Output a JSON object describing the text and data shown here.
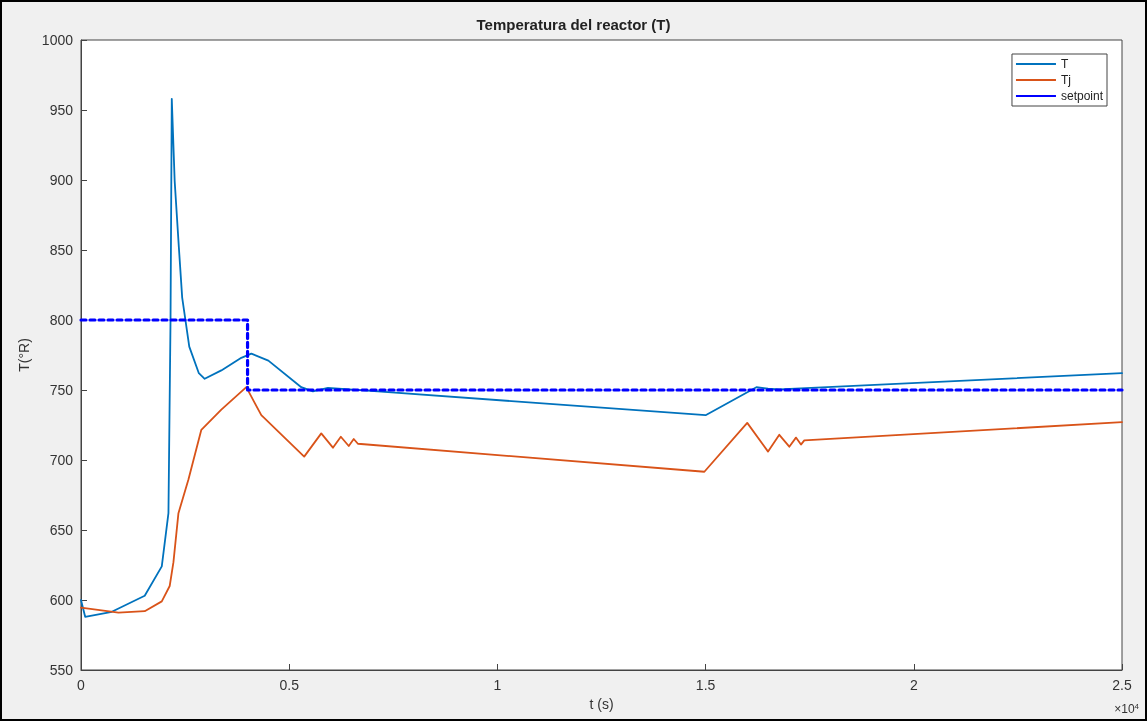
{
  "chart_data": {
    "type": "line",
    "title": "Temperatura del reactor (T)",
    "xlabel": "t (s)",
    "ylabel": "T(°R)",
    "annotations": [
      "×10$^{4}$"
    ],
    "xlim": [
      0,
      2.5
    ],
    "xticks": [
      0,
      0.5,
      1,
      1.5,
      2,
      2.5
    ],
    "ylim": [
      550,
      1000
    ],
    "yticks": [
      550,
      600,
      650,
      700,
      750,
      800,
      850,
      900,
      950,
      1000
    ],
    "grid": false,
    "legend": "top right",
    "marker": "none",
    "series": [
      {
        "name": "T",
        "color": "#0072bd",
        "line_style": "solid",
        "x": [
          0,
          0.01,
          0.074,
          0.153,
          0.194,
          0.21,
          0.215,
          0.218,
          0.225,
          0.235,
          0.243,
          0.26,
          0.283,
          0.297,
          0.337,
          0.385,
          0.409,
          0.45,
          0.529,
          0.557,
          0.593,
          0.713,
          1.5,
          1.622,
          1.65,
          1.677,
          2.5
        ],
        "values": [
          600,
          588,
          591.6,
          603,
          624,
          662,
          800,
          958,
          899,
          852,
          816,
          781,
          762,
          758,
          764,
          773,
          776,
          771,
          752,
          749,
          751.5,
          749,
          732,
          752,
          751,
          750.5,
          762
        ]
      },
      {
        "name": "Tj",
        "color": "#d95319",
        "line_style": "solid",
        "x": [
          0,
          0.09,
          0.153,
          0.194,
          0.213,
          0.222,
          0.234,
          0.258,
          0.289,
          0.337,
          0.397,
          0.433,
          0.536,
          0.577,
          0.605,
          0.624,
          0.643,
          0.655,
          0.665,
          1.497,
          1.6,
          1.65,
          1.677,
          1.701,
          1.717,
          1.729,
          1.737,
          2.5
        ],
        "values": [
          594.5,
          591,
          592,
          599,
          610,
          627,
          662,
          686,
          721.6,
          736,
          752,
          732,
          702.4,
          719,
          708.8,
          716.6,
          710,
          715,
          711.6,
          691.6,
          726.5,
          706,
          718,
          709.5,
          716,
          711,
          714,
          727
        ]
      },
      {
        "name": "setpoint",
        "color": "#0000ff",
        "line_style": "dashed",
        "x": [
          0,
          0.4,
          0.4,
          2.5
        ],
        "values": [
          800,
          800,
          750,
          750
        ]
      }
    ]
  }
}
